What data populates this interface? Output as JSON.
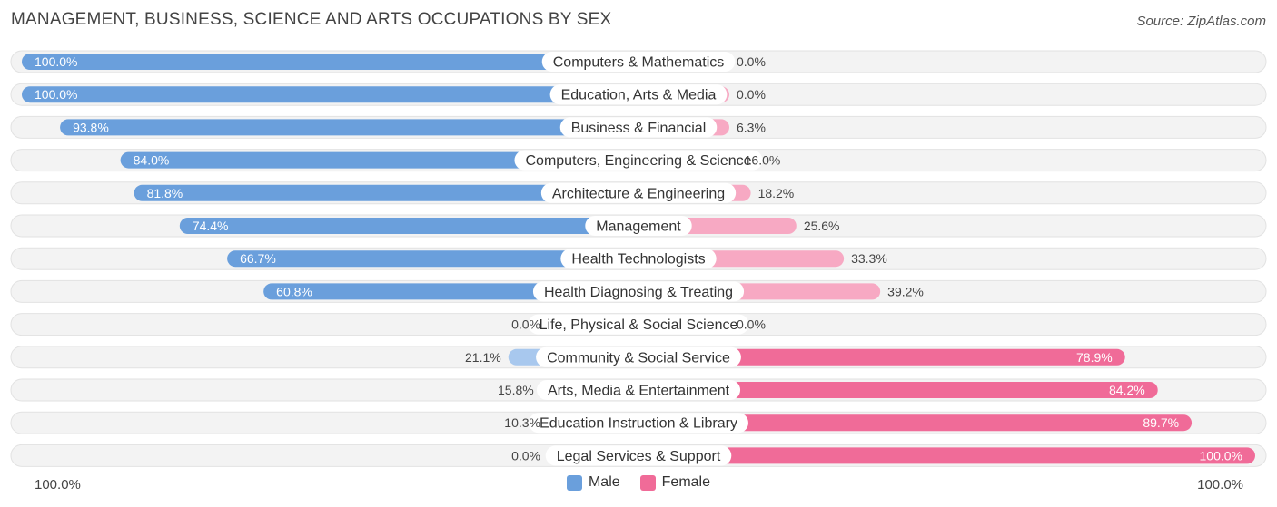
{
  "title": "MANAGEMENT, BUSINESS, SCIENCE AND ARTS OCCUPATIONS BY SEX",
  "source": "Source: ZipAtlas.com",
  "colors": {
    "male_strong": "#6a9fdc",
    "male_light": "#a8c8ee",
    "female_strong": "#f06b98",
    "female_light": "#f7a9c3",
    "row_bg": "#f0f0f0"
  },
  "legend": {
    "male": "Male",
    "female": "Female"
  },
  "axis": {
    "left": "100.0%",
    "right": "100.0%"
  },
  "chart_data": {
    "type": "bar",
    "orientation": "horizontal-diverging",
    "xlim": [
      -100,
      100
    ],
    "categories": [
      "Computers & Mathematics",
      "Education, Arts & Media",
      "Business & Financial",
      "Computers, Engineering & Science",
      "Architecture & Engineering",
      "Management",
      "Health Technologists",
      "Health Diagnosing & Treating",
      "Life, Physical & Social Science",
      "Community & Social Service",
      "Arts, Media & Entertainment",
      "Education Instruction & Library",
      "Legal Services & Support"
    ],
    "series": [
      {
        "name": "Male",
        "values": [
          100.0,
          100.0,
          93.8,
          84.0,
          81.8,
          74.4,
          66.7,
          60.8,
          0.0,
          21.1,
          15.8,
          10.3,
          0.0
        ]
      },
      {
        "name": "Female",
        "values": [
          0.0,
          0.0,
          6.3,
          16.0,
          18.2,
          25.6,
          33.3,
          39.2,
          0.0,
          78.9,
          84.2,
          89.7,
          100.0
        ]
      }
    ],
    "male_labels": [
      "100.0%",
      "100.0%",
      "93.8%",
      "84.0%",
      "81.8%",
      "74.4%",
      "66.7%",
      "60.8%",
      "0.0%",
      "21.1%",
      "15.8%",
      "10.3%",
      "0.0%"
    ],
    "female_labels": [
      "0.0%",
      "0.0%",
      "6.3%",
      "16.0%",
      "18.2%",
      "25.6%",
      "33.3%",
      "39.2%",
      "0.0%",
      "78.9%",
      "84.2%",
      "89.7%",
      "100.0%"
    ],
    "legend_position": "bottom"
  }
}
